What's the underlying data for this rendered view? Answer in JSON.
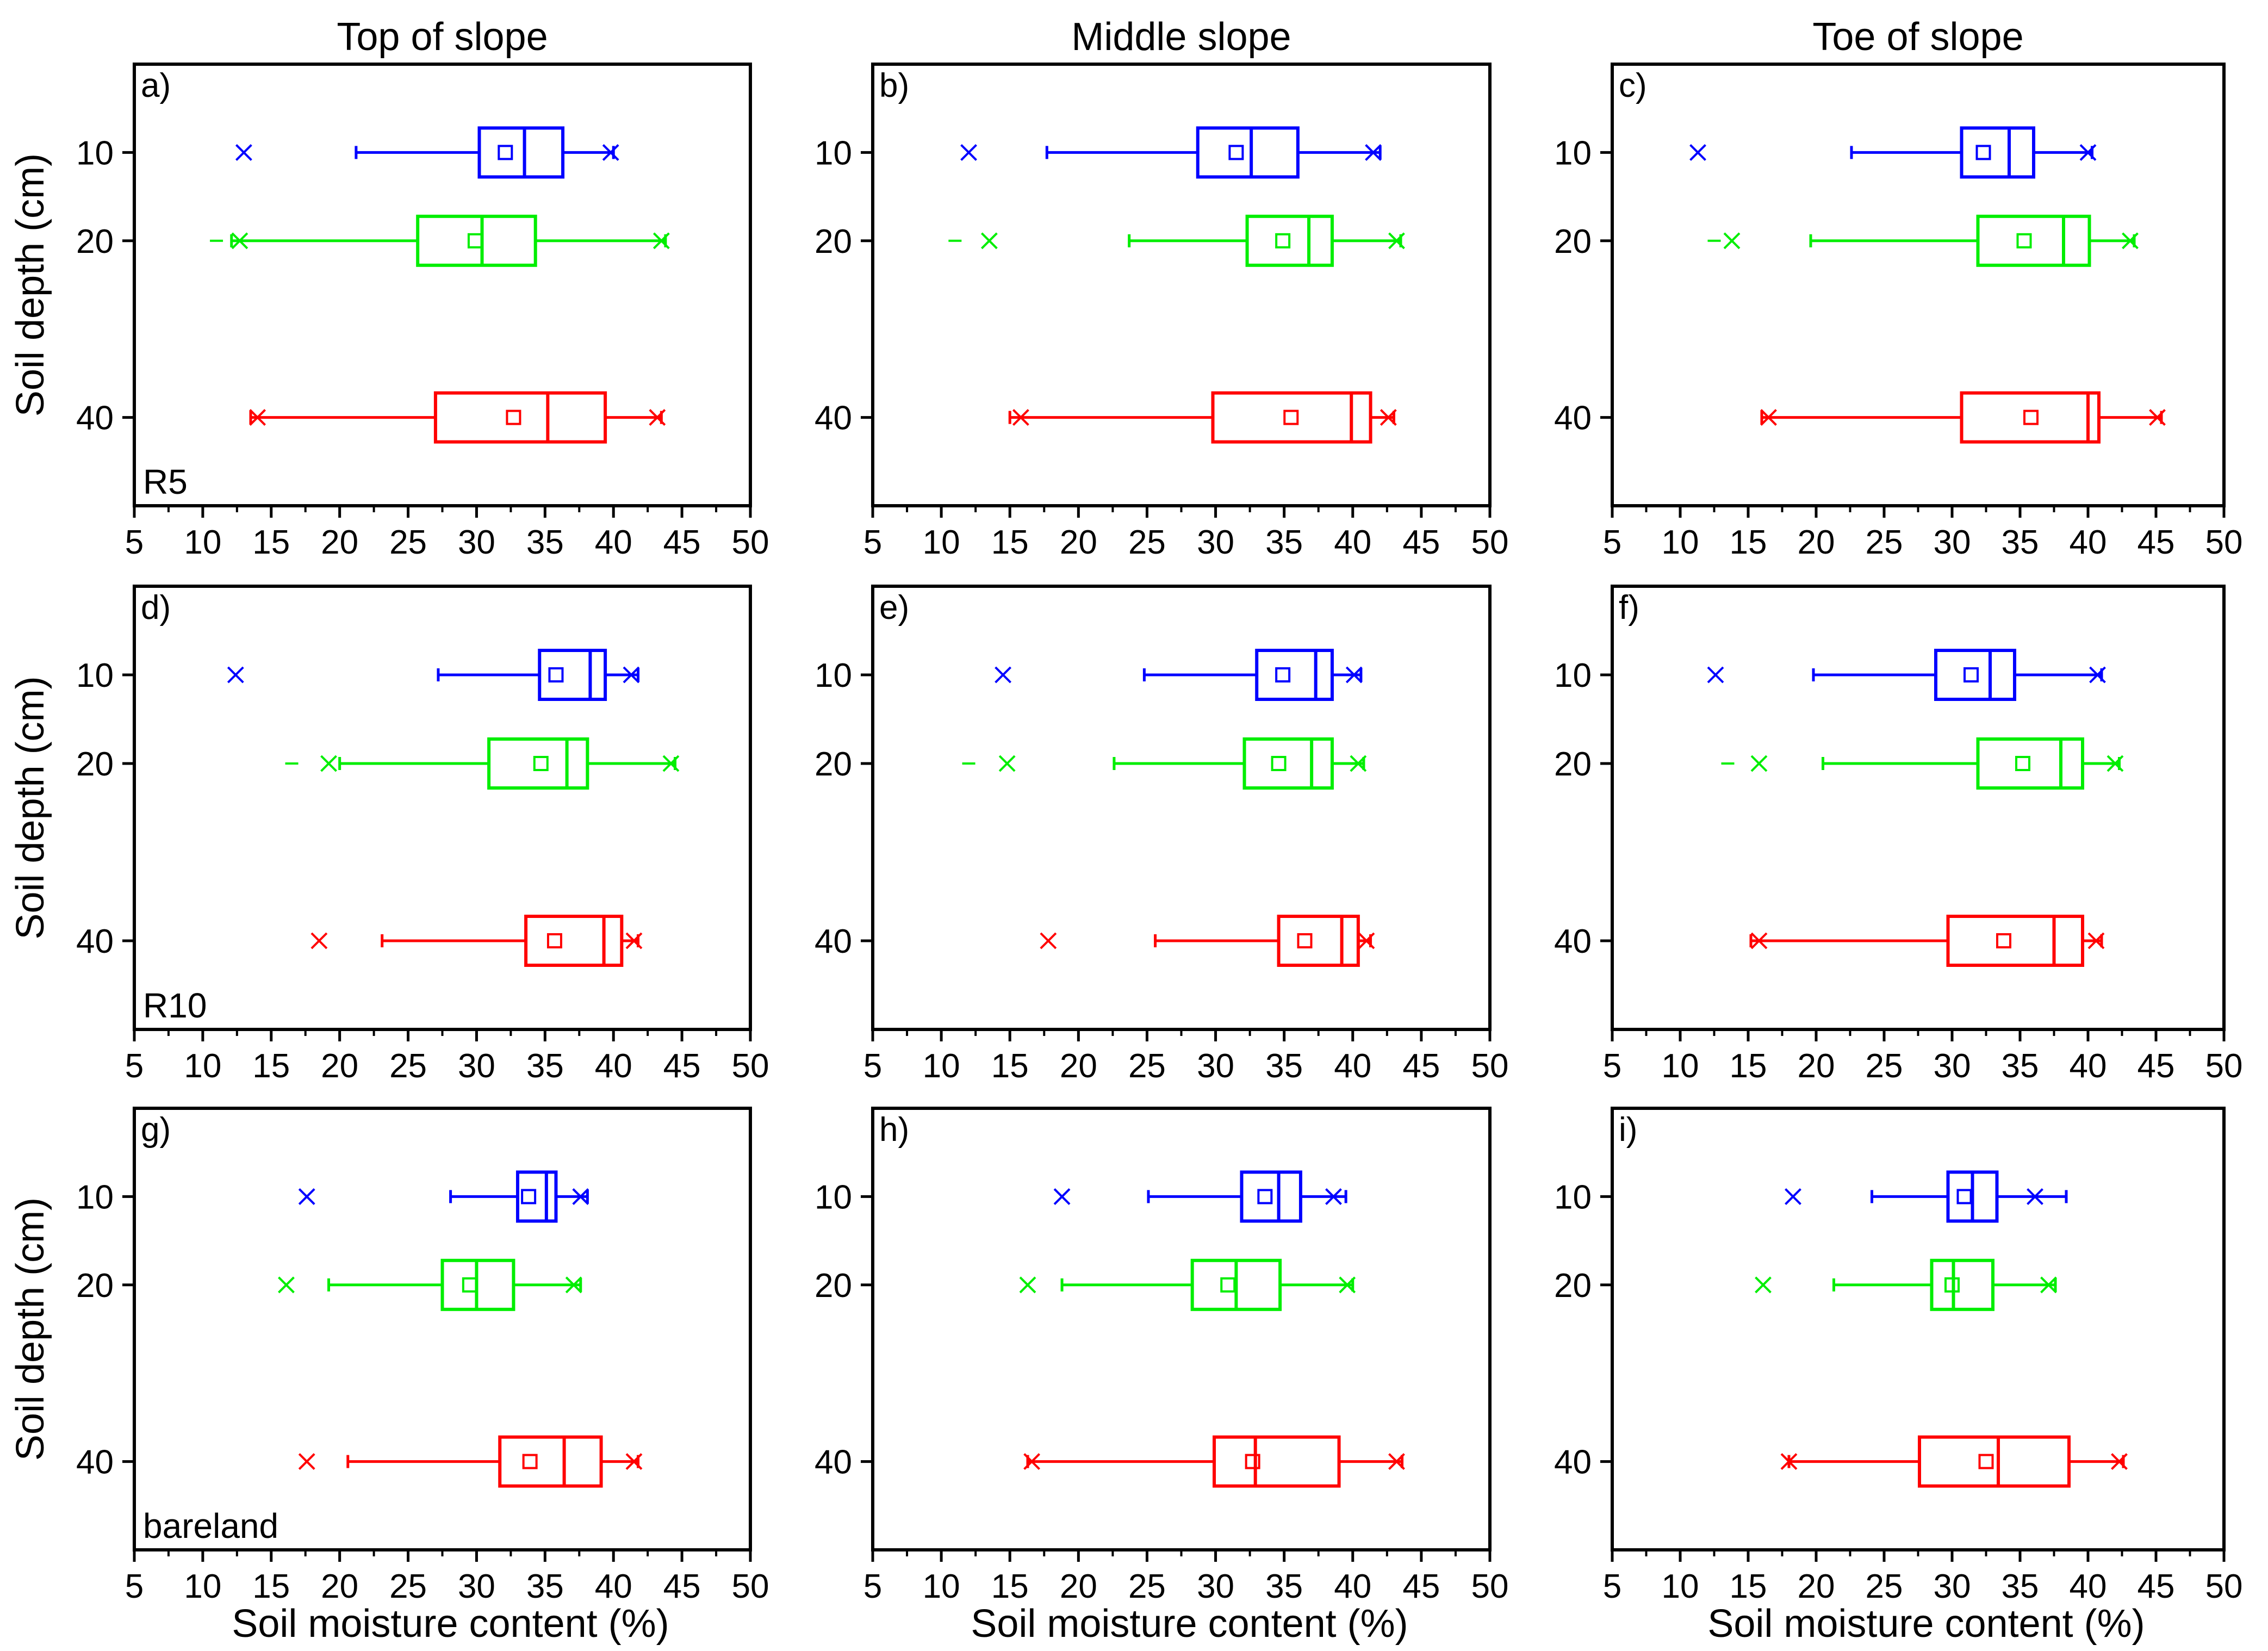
{
  "column_titles": [
    "Top of slope",
    "Middle slope",
    "Toe of slope"
  ],
  "y_axis_label": "Soil depth (cm)",
  "x_axis_label": "Soil moisture content (%)",
  "row_labels": [
    "R5",
    "R10",
    "bareland"
  ],
  "series_colors": {
    "10": "#0000ff",
    "20": "#00ee00",
    "40": "#ff0000"
  },
  "chart_data": {
    "type": "box",
    "xlim": [
      5,
      50
    ],
    "xticks": [
      5,
      10,
      15,
      20,
      25,
      30,
      35,
      40,
      45,
      50
    ],
    "ylim": [
      0,
      50
    ],
    "yticks": [
      10,
      20,
      40
    ],
    "depths": [
      "10",
      "20",
      "40"
    ],
    "panels": [
      {
        "letter": "a)",
        "row": "R5",
        "column": "Top of slope",
        "boxes": [
          {
            "depth": "10",
            "q1": 30.2,
            "median": 33.5,
            "q3": 36.3,
            "mean": 32.1,
            "whisker_low": 21.2,
            "whisker_high": 40.0,
            "minmax": [
              13.0,
              39.8
            ],
            "outliers": []
          },
          {
            "depth": "20",
            "q1": 25.7,
            "median": 30.4,
            "q3": 34.3,
            "mean": 29.9,
            "whisker_low": 12.1,
            "whisker_high": 43.8,
            "minmax": [
              12.7,
              43.5
            ],
            "outliers": [
              11.0
            ]
          },
          {
            "depth": "40",
            "q1": 27.0,
            "median": 35.2,
            "q3": 39.4,
            "mean": 32.7,
            "whisker_low": 13.5,
            "whisker_high": 43.5,
            "minmax": [
              14.0,
              43.2
            ],
            "outliers": []
          }
        ]
      },
      {
        "letter": "b)",
        "row": "R5",
        "column": "Middle slope",
        "boxes": [
          {
            "depth": "10",
            "q1": 28.7,
            "median": 32.6,
            "q3": 36.0,
            "mean": 31.5,
            "whisker_low": 17.7,
            "whisker_high": 42.0,
            "minmax": [
              12.0,
              41.5
            ],
            "outliers": []
          },
          {
            "depth": "20",
            "q1": 32.3,
            "median": 36.8,
            "q3": 38.5,
            "mean": 34.9,
            "whisker_low": 23.7,
            "whisker_high": 43.5,
            "minmax": [
              13.5,
              43.2
            ],
            "outliers": [
              11.0
            ]
          },
          {
            "depth": "40",
            "q1": 29.8,
            "median": 39.9,
            "q3": 41.3,
            "mean": 35.5,
            "whisker_low": 15.0,
            "whisker_high": 43.0,
            "minmax": [
              15.8,
              42.6
            ],
            "outliers": []
          }
        ]
      },
      {
        "letter": "c)",
        "row": "R5",
        "column": "Toe of slope",
        "boxes": [
          {
            "depth": "10",
            "q1": 30.7,
            "median": 34.2,
            "q3": 36.0,
            "mean": 32.3,
            "whisker_low": 22.6,
            "whisker_high": 40.3,
            "minmax": [
              11.3,
              40.0
            ],
            "outliers": []
          },
          {
            "depth": "20",
            "q1": 31.9,
            "median": 38.2,
            "q3": 40.1,
            "mean": 35.3,
            "whisker_low": 19.6,
            "whisker_high": 43.4,
            "minmax": [
              13.8,
              43.1
            ],
            "outliers": [
              12.5
            ]
          },
          {
            "depth": "40",
            "q1": 30.7,
            "median": 40.0,
            "q3": 40.8,
            "mean": 35.8,
            "whisker_low": 16.0,
            "whisker_high": 45.4,
            "minmax": [
              16.5,
              45.1
            ],
            "outliers": []
          }
        ]
      },
      {
        "letter": "d)",
        "row": "R10",
        "column": "Top of slope",
        "boxes": [
          {
            "depth": "10",
            "q1": 34.6,
            "median": 38.3,
            "q3": 39.4,
            "mean": 35.8,
            "whisker_low": 27.2,
            "whisker_high": 41.8,
            "minmax": [
              12.4,
              41.3
            ],
            "outliers": []
          },
          {
            "depth": "20",
            "q1": 30.9,
            "median": 36.6,
            "q3": 38.1,
            "mean": 34.7,
            "whisker_low": 20.0,
            "whisker_high": 44.5,
            "minmax": [
              19.2,
              44.2
            ],
            "outliers": [
              16.5
            ]
          },
          {
            "depth": "40",
            "q1": 33.6,
            "median": 39.3,
            "q3": 40.6,
            "mean": 35.7,
            "whisker_low": 23.1,
            "whisker_high": 41.8,
            "minmax": [
              18.5,
              41.5
            ],
            "outliers": []
          }
        ]
      },
      {
        "letter": "e)",
        "row": "R10",
        "column": "Middle slope",
        "boxes": [
          {
            "depth": "10",
            "q1": 33.0,
            "median": 37.3,
            "q3": 38.5,
            "mean": 34.9,
            "whisker_low": 24.8,
            "whisker_high": 40.6,
            "minmax": [
              14.5,
              40.1
            ],
            "outliers": []
          },
          {
            "depth": "20",
            "q1": 32.1,
            "median": 37.0,
            "q3": 38.5,
            "mean": 34.6,
            "whisker_low": 22.6,
            "whisker_high": 40.8,
            "minmax": [
              14.8,
              40.4
            ],
            "outliers": [
              12.0
            ]
          },
          {
            "depth": "40",
            "q1": 34.6,
            "median": 39.2,
            "q3": 40.4,
            "mean": 36.5,
            "whisker_low": 25.6,
            "whisker_high": 41.3,
            "minmax": [
              17.8,
              41.0
            ],
            "outliers": []
          }
        ]
      },
      {
        "letter": "f)",
        "row": "R10",
        "column": "Toe of slope",
        "boxes": [
          {
            "depth": "10",
            "q1": 28.8,
            "median": 32.8,
            "q3": 34.6,
            "mean": 31.4,
            "whisker_low": 19.8,
            "whisker_high": 41.0,
            "minmax": [
              12.6,
              40.7
            ],
            "outliers": []
          },
          {
            "depth": "20",
            "q1": 31.9,
            "median": 38.0,
            "q3": 39.6,
            "mean": 35.2,
            "whisker_low": 20.5,
            "whisker_high": 42.3,
            "minmax": [
              15.8,
              42.0
            ],
            "outliers": [
              13.5
            ]
          },
          {
            "depth": "40",
            "q1": 29.7,
            "median": 37.5,
            "q3": 39.6,
            "mean": 33.8,
            "whisker_low": 15.2,
            "whisker_high": 41.0,
            "minmax": [
              15.8,
              40.6
            ],
            "outliers": []
          }
        ]
      },
      {
        "letter": "g)",
        "row": "bareland",
        "column": "Top of slope",
        "boxes": [
          {
            "depth": "10",
            "q1": 33.0,
            "median": 35.1,
            "q3": 35.8,
            "mean": 33.8,
            "whisker_low": 28.1,
            "whisker_high": 38.1,
            "minmax": [
              17.6,
              37.6
            ],
            "outliers": []
          },
          {
            "depth": "20",
            "q1": 27.5,
            "median": 30.0,
            "q3": 32.7,
            "mean": 29.5,
            "whisker_low": 19.2,
            "whisker_high": 37.6,
            "minmax": [
              16.1,
              37.1
            ],
            "outliers": []
          },
          {
            "depth": "40",
            "q1": 31.7,
            "median": 36.4,
            "q3": 39.1,
            "mean": 33.9,
            "whisker_low": 20.6,
            "whisker_high": 41.8,
            "minmax": [
              17.6,
              41.5
            ],
            "outliers": []
          }
        ]
      },
      {
        "letter": "h)",
        "row": "bareland",
        "column": "Middle slope",
        "boxes": [
          {
            "depth": "10",
            "q1": 31.9,
            "median": 34.6,
            "q3": 36.2,
            "mean": 33.6,
            "whisker_low": 25.1,
            "whisker_high": 39.5,
            "minmax": [
              18.8,
              38.6
            ],
            "outliers": []
          },
          {
            "depth": "20",
            "q1": 28.3,
            "median": 31.5,
            "q3": 34.7,
            "mean": 30.9,
            "whisker_low": 18.8,
            "whisker_high": 40.0,
            "minmax": [
              16.3,
              39.6
            ],
            "outliers": []
          },
          {
            "depth": "40",
            "q1": 29.9,
            "median": 32.9,
            "q3": 39.0,
            "mean": 32.7,
            "whisker_low": 16.3,
            "whisker_high": 43.6,
            "minmax": [
              16.6,
              43.2
            ],
            "outliers": []
          }
        ]
      },
      {
        "letter": "i)",
        "row": "bareland",
        "column": "Toe of slope",
        "boxes": [
          {
            "depth": "10",
            "q1": 29.7,
            "median": 31.5,
            "q3": 33.3,
            "mean": 30.9,
            "whisker_low": 24.1,
            "whisker_high": 38.4,
            "minmax": [
              18.3,
              36.1
            ],
            "outliers": []
          },
          {
            "depth": "20",
            "q1": 28.5,
            "median": 30.1,
            "q3": 33.0,
            "mean": 30.0,
            "whisker_low": 21.3,
            "whisker_high": 37.6,
            "minmax": [
              16.1,
              37.1
            ],
            "outliers": []
          },
          {
            "depth": "40",
            "q1": 27.6,
            "median": 33.4,
            "q3": 38.6,
            "mean": 32.5,
            "whisker_low": 18.0,
            "whisker_high": 42.6,
            "minmax": [
              18.0,
              42.3
            ],
            "outliers": []
          }
        ]
      }
    ]
  }
}
